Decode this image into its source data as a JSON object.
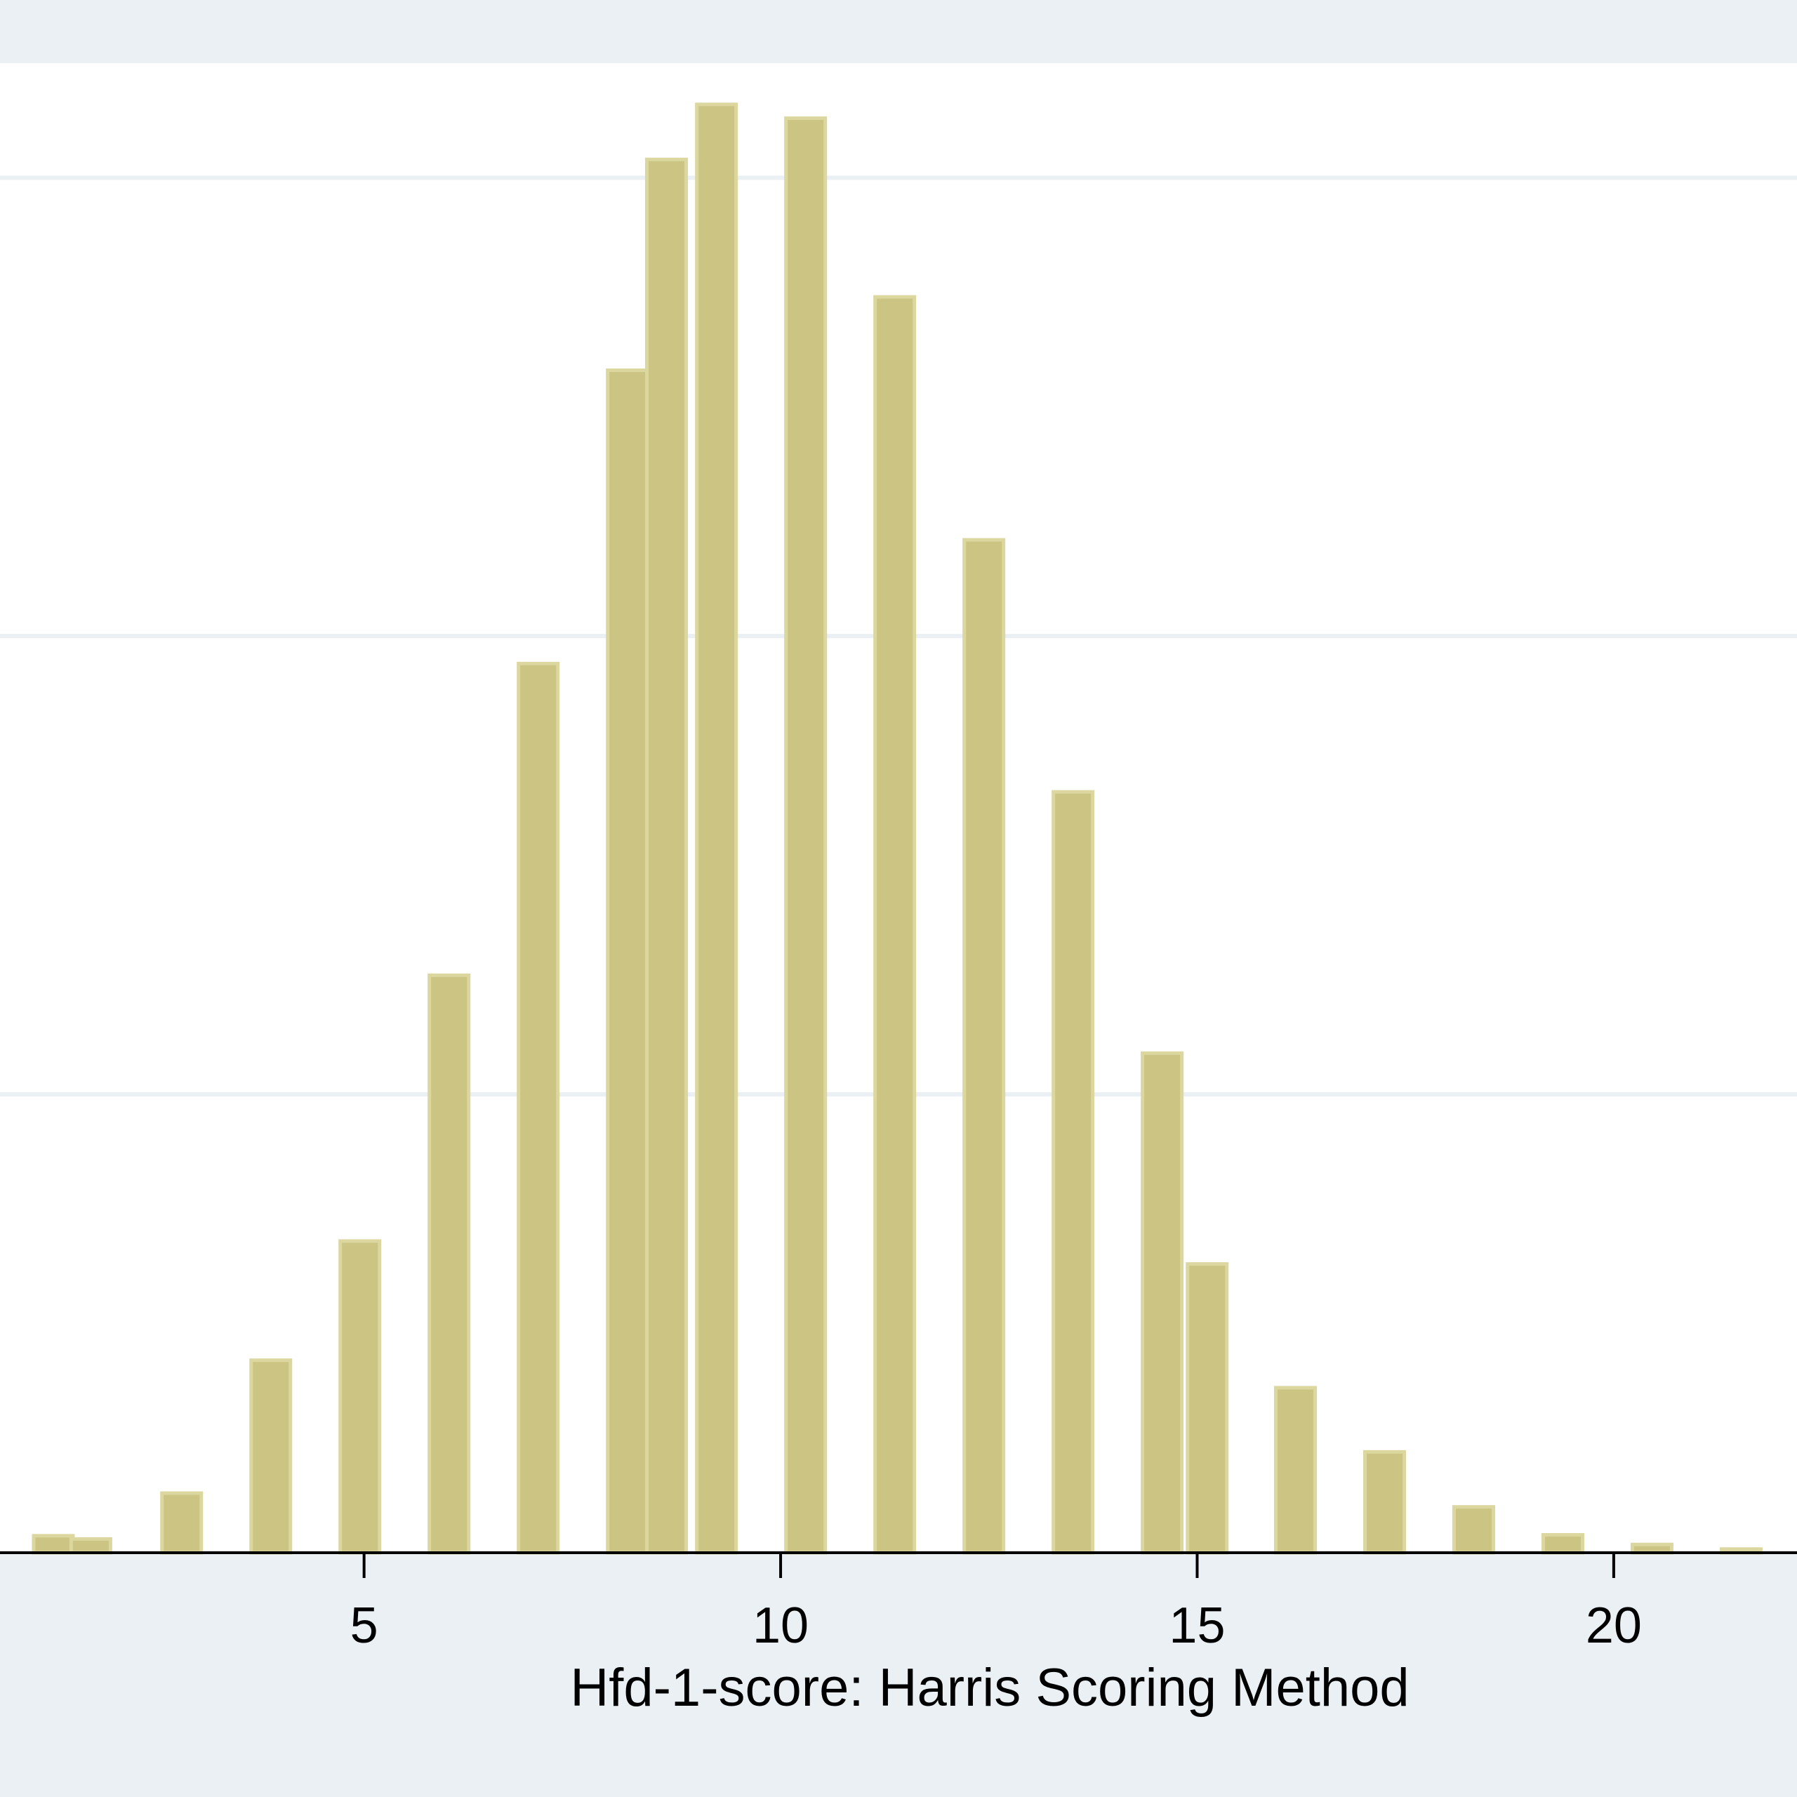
{
  "chart_data": {
    "type": "bar",
    "title": "",
    "xlabel": "Hfd-1-score: Harris Scoring Method",
    "ylabel": "",
    "x_ticks": [
      5,
      10,
      15,
      20
    ],
    "grid": true,
    "legend": "none",
    "bar_color": "#cbc483",
    "bar_edge_color": "#dcd69f",
    "plot_background": "#ffffff",
    "outer_background": "#eaf0f3",
    "grid_color": "#eaf0f3",
    "xlim": [
      0.63,
      22.2
    ],
    "ylim": [
      0,
      3.25
    ],
    "bars": [
      {
        "x": 1.27,
        "y": 0.037
      },
      {
        "x": 1.72,
        "y": 0.03
      },
      {
        "x": 2.81,
        "y": 0.13
      },
      {
        "x": 3.88,
        "y": 0.42
      },
      {
        "x": 4.95,
        "y": 0.68
      },
      {
        "x": 6.02,
        "y": 1.26
      },
      {
        "x": 7.09,
        "y": 1.94
      },
      {
        "x": 8.16,
        "y": 2.58
      },
      {
        "x": 8.63,
        "y": 3.04
      },
      {
        "x": 9.23,
        "y": 3.16
      },
      {
        "x": 10.3,
        "y": 3.13
      },
      {
        "x": 11.37,
        "y": 2.74
      },
      {
        "x": 12.44,
        "y": 2.21
      },
      {
        "x": 13.51,
        "y": 1.66
      },
      {
        "x": 14.58,
        "y": 1.09
      },
      {
        "x": 15.12,
        "y": 0.63
      },
      {
        "x": 16.18,
        "y": 0.36
      },
      {
        "x": 17.25,
        "y": 0.22
      },
      {
        "x": 18.32,
        "y": 0.1
      },
      {
        "x": 19.39,
        "y": 0.039
      },
      {
        "x": 20.46,
        "y": 0.018
      },
      {
        "x": 21.53,
        "y": 0.008
      }
    ],
    "gridlines_y": [
      1,
      2,
      3
    ]
  }
}
